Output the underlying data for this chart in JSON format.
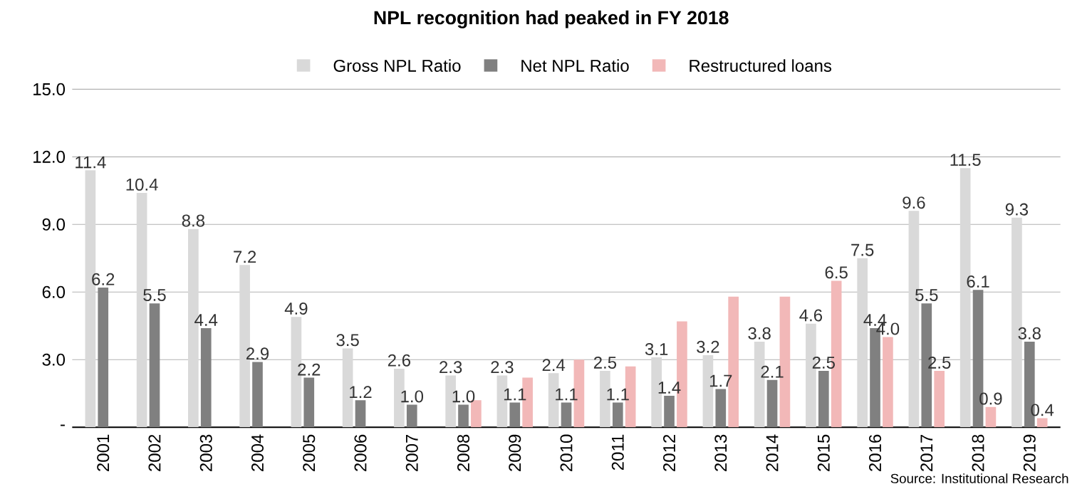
{
  "chart_data": {
    "type": "bar",
    "title": "**NPL recognition had peaked in FY 2018**",
    "categories": [
      "2001",
      "2002",
      "2003",
      "2004",
      "2005",
      "2006",
      "2007",
      "2008",
      "2009",
      "2010",
      "2011",
      "2012",
      "2013",
      "2014",
      "2015",
      "2016",
      "2017",
      "2018",
      "2019"
    ],
    "series": [
      {
        "name": "Gross NPL Ratio",
        "color": "#d9d9d9",
        "values": [
          11.4,
          10.4,
          8.8,
          7.2,
          4.9,
          3.5,
          2.6,
          2.3,
          2.3,
          2.4,
          2.5,
          3.1,
          3.2,
          3.8,
          4.6,
          7.5,
          9.6,
          11.5,
          9.3
        ],
        "value_labels": [
          "11.4",
          "10.4",
          "8.8",
          "7.2",
          "4.9",
          "3.5",
          "2.6",
          "2.3",
          "2.3",
          "2.4",
          "2.5",
          "3.1",
          "3.2",
          "3.8",
          "4.6",
          "7.5",
          "9.6",
          "11.5",
          "9.3"
        ]
      },
      {
        "name": "Net NPL Ratio",
        "color": "#808080",
        "values": [
          6.2,
          5.5,
          4.4,
          2.9,
          2.2,
          1.2,
          1.0,
          1.0,
          1.1,
          1.1,
          1.1,
          1.4,
          1.7,
          2.1,
          2.5,
          4.4,
          5.5,
          6.1,
          3.8
        ],
        "value_labels": [
          "6.2",
          "5.5",
          "4.4",
          "2.9",
          "2.2",
          "1.2",
          "1.0",
          "1.0",
          "1.1",
          "1.1",
          "1.1",
          "1.4",
          "1.7",
          "2.1",
          "2.5",
          "4.4",
          "5.5",
          "6.1",
          "3.8"
        ]
      },
      {
        "name": "Restructured loans",
        "color": "#f2b8b8",
        "values": [
          null,
          null,
          null,
          null,
          null,
          null,
          null,
          1.2,
          2.2,
          3.0,
          2.7,
          4.7,
          5.8,
          5.8,
          6.5,
          4.0,
          2.5,
          0.9,
          0.4
        ],
        "value_labels": [
          null,
          null,
          null,
          null,
          null,
          null,
          null,
          null,
          null,
          null,
          null,
          null,
          null,
          null,
          "6.5",
          "4.0",
          "2.5",
          "0.9",
          "0.4"
        ]
      }
    ],
    "ylim": [
      0,
      15
    ],
    "yticks": [
      {
        "value": 0,
        "label": "-"
      },
      {
        "value": 3,
        "label": "3.0"
      },
      {
        "value": 6,
        "label": "6.0"
      },
      {
        "value": 9,
        "label": "9.0"
      },
      {
        "value": 12,
        "label": "12.0"
      },
      {
        "value": 15,
        "label": "15.0"
      }
    ],
    "grid": "y",
    "legend": "top",
    "annotations": [
      "Source: Institutional Research"
    ]
  }
}
